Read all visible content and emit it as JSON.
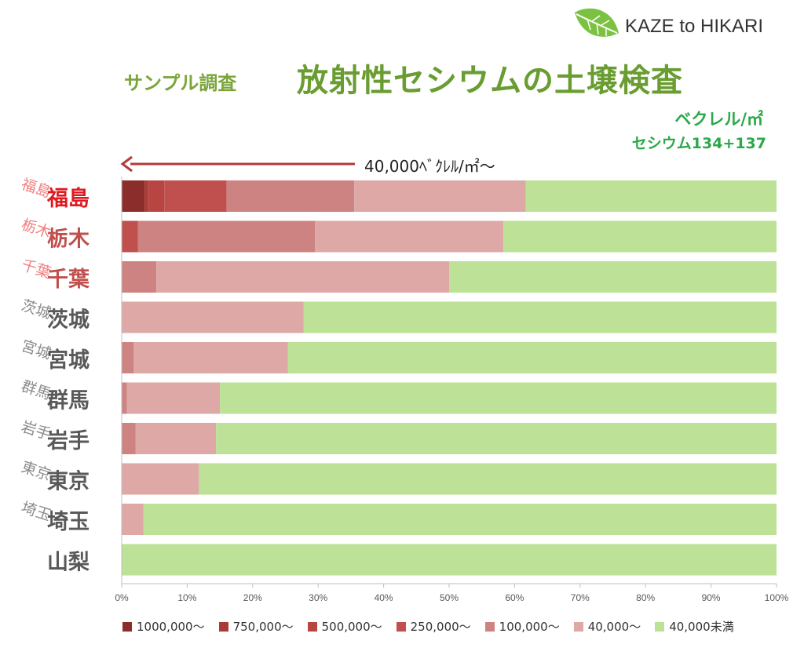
{
  "logo": {
    "text": "KAZE to HIKARI",
    "leaf_color": "#7cc242",
    "icon": "leaf-icon"
  },
  "title_small": "サンプル調査",
  "title_main": "放射性セシウムの土壌検査",
  "unit_label": "ベクレル/㎡",
  "unit_sublabel": "セシウム134+137",
  "arrow_label": "40,000ﾍﾞｸﾚﾙ/㎡～",
  "arrow_color": "#b53a3a",
  "chart_data": {
    "type": "bar",
    "orientation": "horizontal",
    "stacked": true,
    "percent_scale": true,
    "categories": [
      "福島",
      "栃木",
      "千葉",
      "茨城",
      "宮城",
      "群馬",
      "岩手",
      "東京",
      "埼玉",
      "山梨"
    ],
    "category_colors": [
      "#e0191f",
      "#c0504d",
      "#c0504d",
      "#595959",
      "#595959",
      "#595959",
      "#595959",
      "#595959",
      "#595959",
      "#595959"
    ],
    "shadow_labels": [
      "福島",
      "栃木",
      "千葉",
      "茨城",
      "宮城",
      "群馬",
      "岩手",
      "東京",
      "埼玉",
      ""
    ],
    "shadow_colors": [
      "#f08080",
      "#f08080",
      "#f08080",
      "#8c8c8c",
      "#8c8c8c",
      "#8c8c8c",
      "#8c8c8c",
      "#8c8c8c",
      "#8c8c8c",
      "#8c8c8c"
    ],
    "series": [
      {
        "name": "1000,000～",
        "color": "#8b2e2b",
        "values": [
          3.5,
          0,
          0,
          0,
          0,
          0,
          0,
          0,
          0,
          0
        ]
      },
      {
        "name": "750,000～",
        "color": "#a93a36",
        "values": [
          0.5,
          0,
          0,
          0,
          0,
          0,
          0,
          0,
          0,
          0
        ]
      },
      {
        "name": "500,000～",
        "color": "#b84541",
        "values": [
          2.5,
          0,
          0,
          0,
          0,
          0,
          0,
          0,
          0,
          0
        ]
      },
      {
        "name": "250,000～",
        "color": "#c0504d",
        "values": [
          9.5,
          2.5,
          0,
          0,
          0,
          0,
          0,
          0,
          0,
          0
        ]
      },
      {
        "name": "100,000～",
        "color": "#cd8381",
        "values": [
          19.5,
          27.0,
          5.3,
          0,
          1.8,
          0.8,
          2.1,
          0,
          0,
          0
        ]
      },
      {
        "name": "40,000～",
        "color": "#dda8a6",
        "values": [
          26.2,
          28.8,
          44.7,
          27.8,
          23.6,
          14.2,
          12.3,
          11.8,
          3.3,
          0
        ]
      },
      {
        "name": "40,000未満",
        "color": "#bde196",
        "values": [
          38.3,
          41.7,
          50.0,
          72.2,
          74.6,
          85.0,
          85.6,
          88.2,
          96.7,
          100
        ]
      }
    ],
    "xticks": [
      "0%",
      "10%",
      "20%",
      "30%",
      "40%",
      "50%",
      "60%",
      "70%",
      "80%",
      "90%",
      "100%"
    ],
    "xlim": [
      0,
      100
    ],
    "grid": false,
    "legend_position": "bottom"
  }
}
